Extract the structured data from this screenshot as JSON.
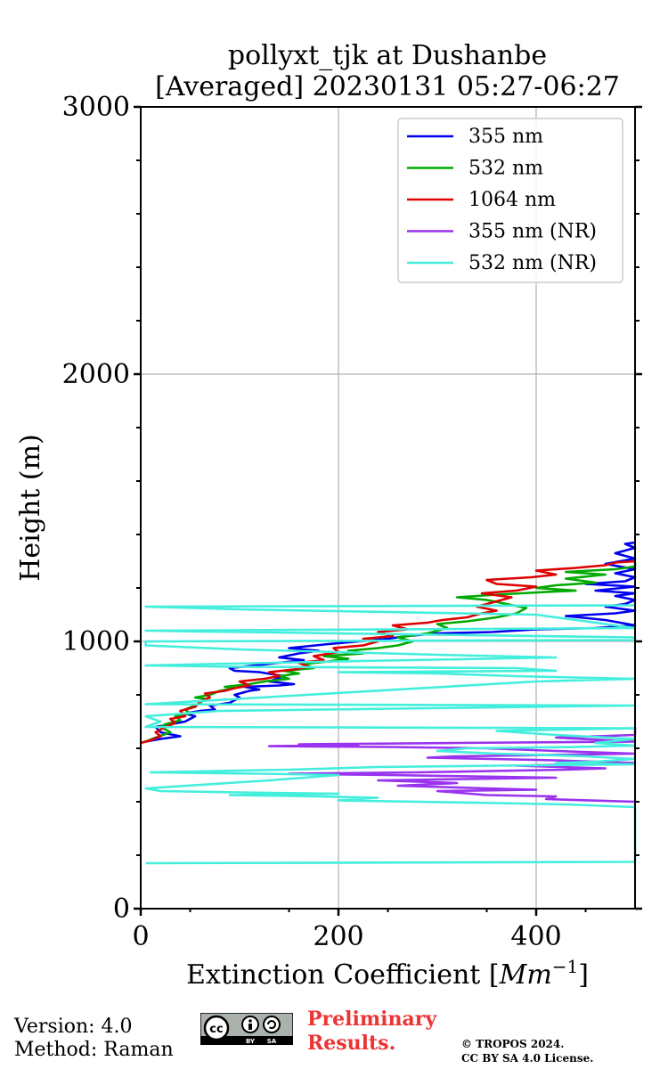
{
  "chart_data": {
    "type": "line",
    "title_line1": "pollyxt_tjk at Dushanbe",
    "title_line2": "[Averaged] 20230131 05:27-06:27",
    "xlabel_text": "Extinction Coefficient [",
    "xlabel_unit": "Mm",
    "xlabel_exp": "−1",
    "xlabel_close": "]",
    "ylabel": "Height (m)",
    "xlim": [
      0,
      500
    ],
    "ylim": [
      0,
      3000
    ],
    "xticks": [
      0,
      200,
      400
    ],
    "yticks": [
      0,
      1000,
      2000,
      3000
    ],
    "grid": true,
    "legend_position": "top-right",
    "series": [
      {
        "name": "355 nm",
        "color": "#0000ee",
        "points": [
          [
            5,
            625
          ],
          [
            20,
            635
          ],
          [
            40,
            645
          ],
          [
            20,
            660
          ],
          [
            15,
            680
          ],
          [
            30,
            690
          ],
          [
            45,
            700
          ],
          [
            55,
            720
          ],
          [
            45,
            730
          ],
          [
            60,
            740
          ],
          [
            75,
            745
          ],
          [
            70,
            760
          ],
          [
            90,
            770
          ],
          [
            100,
            790
          ],
          [
            95,
            800
          ],
          [
            110,
            815
          ],
          [
            120,
            820
          ],
          [
            105,
            830
          ],
          [
            140,
            835
          ],
          [
            155,
            840
          ],
          [
            130,
            850
          ],
          [
            145,
            870
          ],
          [
            120,
            885
          ],
          [
            95,
            890
          ],
          [
            90,
            900
          ],
          [
            115,
            910
          ],
          [
            140,
            920
          ],
          [
            165,
            930
          ],
          [
            140,
            940
          ],
          [
            160,
            955
          ],
          [
            180,
            965
          ],
          [
            150,
            975
          ],
          [
            190,
            990
          ],
          [
            220,
            1000
          ],
          [
            250,
            1010
          ],
          [
            270,
            1020
          ],
          [
            300,
            1030
          ],
          [
            355,
            1035
          ],
          [
            400,
            1045
          ],
          [
            460,
            1050
          ],
          [
            500,
            1060
          ],
          [
            470,
            1080
          ],
          [
            430,
            1095
          ],
          [
            480,
            1105
          ],
          [
            500,
            1115
          ],
          [
            470,
            1130
          ],
          [
            490,
            1140
          ],
          [
            500,
            1155
          ],
          [
            480,
            1170
          ],
          [
            500,
            1180
          ],
          [
            460,
            1190
          ],
          [
            500,
            1205
          ],
          [
            450,
            1215
          ],
          [
            490,
            1225
          ],
          [
            500,
            1240
          ],
          [
            480,
            1255
          ],
          [
            500,
            1270
          ],
          [
            470,
            1290
          ],
          [
            500,
            1310
          ],
          [
            480,
            1330
          ],
          [
            500,
            1350
          ],
          [
            490,
            1365
          ],
          [
            500,
            1370
          ]
        ]
      },
      {
        "name": "532 nm",
        "color": "#00aa00",
        "points": [
          [
            5,
            625
          ],
          [
            15,
            640
          ],
          [
            30,
            660
          ],
          [
            20,
            680
          ],
          [
            25,
            690
          ],
          [
            40,
            705
          ],
          [
            35,
            720
          ],
          [
            50,
            730
          ],
          [
            45,
            745
          ],
          [
            55,
            760
          ],
          [
            60,
            770
          ],
          [
            65,
            785
          ],
          [
            55,
            790
          ],
          [
            70,
            800
          ],
          [
            80,
            815
          ],
          [
            95,
            825
          ],
          [
            85,
            830
          ],
          [
            110,
            840
          ],
          [
            125,
            850
          ],
          [
            150,
            860
          ],
          [
            140,
            870
          ],
          [
            160,
            880
          ],
          [
            145,
            890
          ],
          [
            175,
            900
          ],
          [
            165,
            915
          ],
          [
            190,
            925
          ],
          [
            210,
            935
          ],
          [
            185,
            945
          ],
          [
            225,
            955
          ],
          [
            210,
            965
          ],
          [
            240,
            975
          ],
          [
            260,
            985
          ],
          [
            275,
            1000
          ],
          [
            260,
            1015
          ],
          [
            290,
            1030
          ],
          [
            310,
            1050
          ],
          [
            300,
            1065
          ],
          [
            330,
            1075
          ],
          [
            360,
            1090
          ],
          [
            380,
            1105
          ],
          [
            390,
            1125
          ],
          [
            370,
            1140
          ],
          [
            350,
            1155
          ],
          [
            320,
            1165
          ],
          [
            360,
            1175
          ],
          [
            410,
            1185
          ],
          [
            440,
            1190
          ],
          [
            400,
            1200
          ],
          [
            420,
            1210
          ],
          [
            460,
            1220
          ],
          [
            430,
            1235
          ],
          [
            470,
            1250
          ],
          [
            430,
            1260
          ],
          [
            480,
            1270
          ],
          [
            500,
            1280
          ],
          [
            500,
            1295
          ]
        ]
      },
      {
        "name": "1064 nm",
        "color": "#dd0000",
        "points": [
          [
            0,
            620
          ],
          [
            10,
            630
          ],
          [
            20,
            645
          ],
          [
            15,
            660
          ],
          [
            25,
            680
          ],
          [
            35,
            695
          ],
          [
            30,
            710
          ],
          [
            45,
            720
          ],
          [
            40,
            740
          ],
          [
            55,
            755
          ],
          [
            60,
            775
          ],
          [
            70,
            790
          ],
          [
            65,
            805
          ],
          [
            85,
            815
          ],
          [
            95,
            825
          ],
          [
            110,
            835
          ],
          [
            100,
            850
          ],
          [
            125,
            860
          ],
          [
            140,
            870
          ],
          [
            130,
            885
          ],
          [
            155,
            895
          ],
          [
            170,
            905
          ],
          [
            160,
            920
          ],
          [
            185,
            930
          ],
          [
            175,
            945
          ],
          [
            200,
            960
          ],
          [
            195,
            975
          ],
          [
            225,
            985
          ],
          [
            240,
            1000
          ],
          [
            225,
            1010
          ],
          [
            255,
            1020
          ],
          [
            240,
            1035
          ],
          [
            270,
            1045
          ],
          [
            255,
            1060
          ],
          [
            290,
            1070
          ],
          [
            305,
            1080
          ],
          [
            330,
            1090
          ],
          [
            345,
            1105
          ],
          [
            360,
            1115
          ],
          [
            340,
            1130
          ],
          [
            360,
            1150
          ],
          [
            375,
            1165
          ],
          [
            345,
            1180
          ],
          [
            380,
            1190
          ],
          [
            400,
            1205
          ],
          [
            360,
            1215
          ],
          [
            350,
            1230
          ],
          [
            395,
            1240
          ],
          [
            420,
            1250
          ],
          [
            400,
            1265
          ],
          [
            440,
            1275
          ],
          [
            470,
            1285
          ],
          [
            480,
            1295
          ],
          [
            500,
            1300
          ]
        ]
      },
      {
        "name": "355 nm (NR)",
        "color": "#9933ee",
        "points": [
          [
            500,
            400
          ],
          [
            410,
            410
          ],
          [
            420,
            420
          ],
          [
            350,
            425
          ],
          [
            300,
            440
          ],
          [
            400,
            445
          ],
          [
            350,
            450
          ],
          [
            260,
            460
          ],
          [
            320,
            470
          ],
          [
            240,
            480
          ],
          [
            420,
            490
          ],
          [
            250,
            500
          ],
          [
            150,
            505
          ],
          [
            280,
            510
          ],
          [
            430,
            520
          ],
          [
            470,
            525
          ],
          [
            380,
            535
          ],
          [
            500,
            545
          ],
          [
            420,
            555
          ],
          [
            290,
            565
          ],
          [
            320,
            570
          ],
          [
            500,
            580
          ],
          [
            420,
            590
          ],
          [
            350,
            600
          ],
          [
            250,
            605
          ],
          [
            130,
            608
          ],
          [
            220,
            612
          ],
          [
            160,
            615
          ],
          [
            320,
            620
          ],
          [
            500,
            625
          ],
          [
            420,
            640
          ],
          [
            500,
            650
          ],
          [
            500,
            660
          ],
          [
            500,
            680
          ]
        ]
      },
      {
        "name": "532 nm (NR)",
        "color": "#44eedd",
        "points": [
          [
            5,
            170
          ],
          [
            500,
            175
          ],
          [
            500,
            380
          ],
          [
            430,
            390
          ],
          [
            360,
            395
          ],
          [
            280,
            400
          ],
          [
            200,
            405
          ],
          [
            240,
            415
          ],
          [
            180,
            420
          ],
          [
            90,
            425
          ],
          [
            200,
            430
          ],
          [
            100,
            435
          ],
          [
            20,
            440
          ],
          [
            5,
            450
          ],
          [
            130,
            480
          ],
          [
            200,
            500
          ],
          [
            120,
            505
          ],
          [
            10,
            510
          ],
          [
            150,
            520
          ],
          [
            240,
            530
          ],
          [
            360,
            535
          ],
          [
            500,
            540
          ],
          [
            420,
            545
          ],
          [
            460,
            550
          ],
          [
            500,
            560
          ],
          [
            450,
            570
          ],
          [
            360,
            580
          ],
          [
            300,
            590
          ],
          [
            330,
            600
          ],
          [
            440,
            605
          ],
          [
            500,
            610
          ],
          [
            460,
            620
          ],
          [
            500,
            635
          ],
          [
            420,
            650
          ],
          [
            360,
            665
          ],
          [
            500,
            675
          ],
          [
            5,
            680
          ],
          [
            20,
            700
          ],
          [
            5,
            720
          ],
          [
            80,
            740
          ],
          [
            500,
            760
          ],
          [
            5,
            765
          ],
          [
            400,
            850
          ],
          [
            500,
            860
          ],
          [
            380,
            870
          ],
          [
            300,
            880
          ],
          [
            200,
            885
          ],
          [
            420,
            890
          ],
          [
            380,
            900
          ],
          [
            100,
            905
          ],
          [
            5,
            910
          ],
          [
            200,
            925
          ],
          [
            420,
            940
          ],
          [
            300,
            950
          ],
          [
            200,
            960
          ],
          [
            100,
            970
          ],
          [
            5,
            985
          ],
          [
            5,
            1000
          ],
          [
            500,
            1005
          ],
          [
            500,
            1015
          ],
          [
            200,
            1030
          ],
          [
            5,
            1040
          ],
          [
            500,
            1050
          ],
          [
            400,
            1100
          ],
          [
            100,
            1120
          ],
          [
            5,
            1130
          ],
          [
            500,
            1135
          ]
        ]
      }
    ]
  },
  "footer": {
    "version": "Version: 4.0",
    "method": "Method: Raman",
    "preliminary_line1": "Preliminary",
    "preliminary_line2": "Results.",
    "preliminary_color": "#ee3333",
    "copyright_line1": "© TROPOS 2024.",
    "copyright_line2": "CC BY SA 4.0 License.",
    "cc_badge_text": "cc",
    "cc_by": "BY",
    "cc_sa": "SA"
  }
}
